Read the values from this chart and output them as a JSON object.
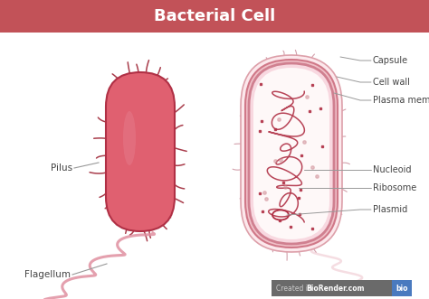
{
  "title": "Bacterial Cell",
  "title_bg_color": "#c25258",
  "title_text_color": "#ffffff",
  "bg_color": "#ffffff",
  "cell_fill_color": "#e06070",
  "cell_stroke_color": "#b03045",
  "cell_highlight_color": "#e88898",
  "pili_color": "#a02838",
  "flagellum_color": "#e090a0",
  "label_color": "#444444",
  "line_color": "#999999",
  "capsule_fill": "#fce8ec",
  "capsule_edge": "#e8a0b0",
  "wall_fill": "#f5c8d0",
  "wall_edge": "#d06878",
  "membrane_fill": "#f0d0d8",
  "membrane_edge": "#d07888",
  "interior_fill": "#fdf4f5",
  "nucleoid_color": "#b03045",
  "ribosome_color": "#b03045",
  "plasmid_color": "#b03045",
  "footer_bg": "#6a6a6a",
  "footer_blue": "#4a7abf",
  "labels_right": [
    "Capsule",
    "Cell wall",
    "Plasma membrane",
    "Nucleoid",
    "Ribosome",
    "Plasmid"
  ],
  "footer_text1": "Created in ",
  "footer_text2": "BioRender.com",
  "footer_badge": "bio"
}
